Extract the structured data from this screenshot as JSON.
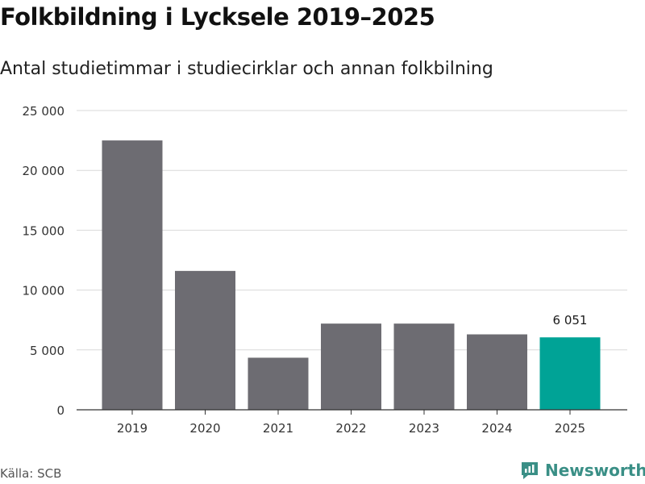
{
  "title": "Folkbildning i Lycksele 2019–2025",
  "subtitle": "Antal studietimmar i studiecirklar och annan folkbilning",
  "source": "Källa: SCB",
  "brand": {
    "name": "Newsworthy",
    "icon": "newsworthy-logo-icon",
    "color": "#3a8f86"
  },
  "colors": {
    "bar": "#6d6c72",
    "highlight": "#00a396",
    "grid": "#d9d9d9",
    "axis": "#333333"
  },
  "chart_data": {
    "type": "bar",
    "title": "Folkbildning i Lycksele 2019–2025",
    "subtitle": "Antal studietimmar i studiecirklar och annan folkbilning",
    "xlabel": "",
    "ylabel": "",
    "categories": [
      "2019",
      "2020",
      "2021",
      "2022",
      "2023",
      "2024",
      "2025"
    ],
    "values": [
      22500,
      11600,
      4350,
      7200,
      7200,
      6300,
      6051
    ],
    "highlight_index": 6,
    "data_labels": [
      {
        "index": 6,
        "text": "6 051"
      }
    ],
    "ylim": [
      0,
      25000
    ],
    "yticks": [
      0,
      5000,
      10000,
      15000,
      20000,
      25000
    ],
    "ytick_labels": [
      "0",
      "5 000",
      "10 000",
      "15 000",
      "20 000",
      "25 000"
    ],
    "grid": true,
    "legend": "none"
  }
}
